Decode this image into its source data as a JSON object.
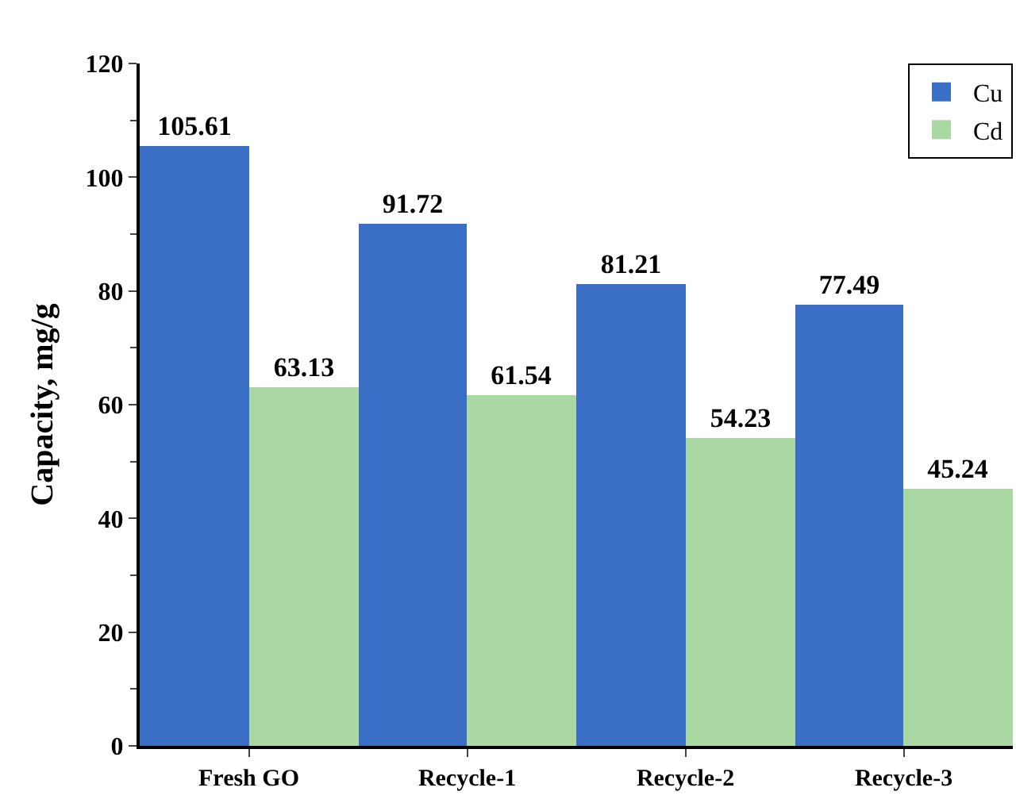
{
  "chart_data": {
    "type": "bar",
    "ylabel": "Capacity, mg/g",
    "categories": [
      "Fresh GO",
      "Recycle-1",
      "Recycle-2",
      "Recycle-3"
    ],
    "series": [
      {
        "name": "Cu",
        "color": "#3b6fc6",
        "values": [
          105.61,
          91.72,
          81.21,
          77.49
        ]
      },
      {
        "name": "Cd",
        "color": "#a9d8a2",
        "values": [
          63.13,
          61.54,
          54.23,
          45.24
        ]
      }
    ],
    "ylim": [
      0,
      120
    ],
    "yticks": [
      0,
      20,
      40,
      60,
      80,
      100,
      120
    ],
    "data_labels": true,
    "legend": "top right"
  }
}
